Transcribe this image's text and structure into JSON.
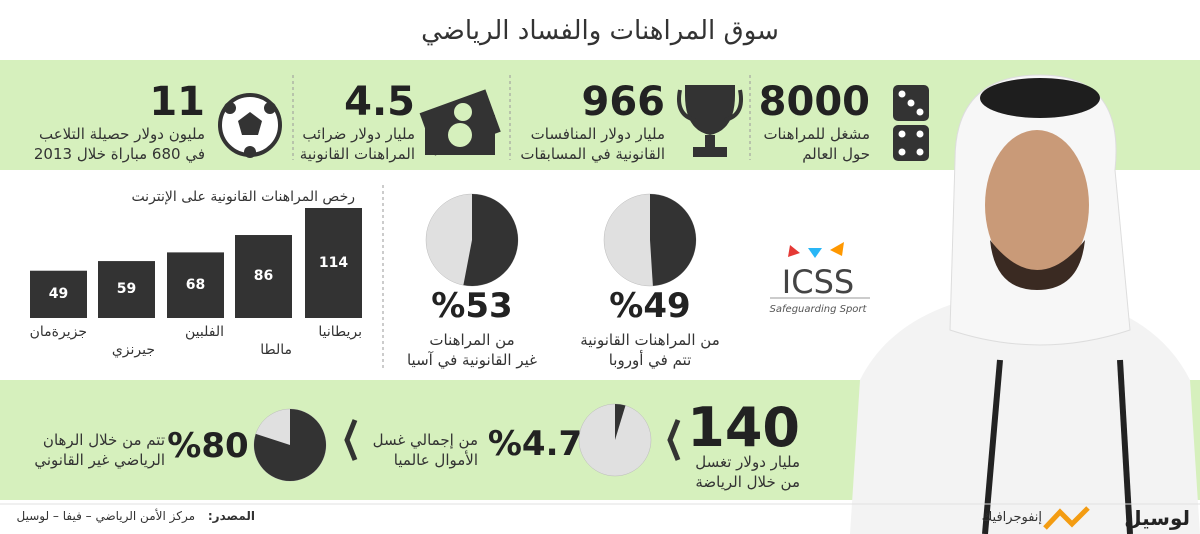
{
  "title": "سوق المراهنات والفساد الرياضي",
  "stats": [
    {
      "value": 8000,
      "lines": [
        "مشغل للمراهنات",
        "حول العالم"
      ]
    },
    {
      "value": 966,
      "lines": [
        "مليار دولار المنافسات",
        "القانونية في المسابقات"
      ]
    },
    {
      "value": 4.5,
      "lines": [
        "مليار دولار ضرائب",
        "المراهنات القانونية"
      ]
    },
    {
      "value": 11,
      "lines": [
        "مليون دولار حصيلة التلاعب",
        "في 680 مباراة خلال 2013"
      ]
    }
  ],
  "chart_data": {
    "type": "bar",
    "title": "رخص المراهنات القانونية على الإنترنت",
    "categories": [
      "بريطانيا",
      "مالطا",
      "الفلبين",
      "جيرنزي",
      "جزيرةمان"
    ],
    "values": [
      114,
      86,
      68,
      59,
      49
    ],
    "color": "#333333"
  },
  "pies": {
    "values": [
      49,
      53,
      4.7,
      80
    ],
    "value_labels": [
      "%49",
      "%53",
      "%4.7",
      "%80"
    ],
    "captions": [
      [
        "من المراهنات القانونية",
        "تتم في أوروبا"
      ],
      [
        "من المراهنات",
        "غير القانونية في آسيا"
      ],
      [
        "من إجمالي غسل",
        "الأموال عالميا"
      ],
      [
        "تتم من خلال الرهان",
        "الرياضي غير القانوني"
      ]
    ],
    "color": "#333333",
    "rest_color": "#e0e0e0"
  },
  "laundering": {
    "value": 140,
    "lines": [
      "مليار دولار تغسل",
      "من خلال الرياضة"
    ]
  },
  "logo": {
    "name": "ICSS",
    "tagline": "Safeguarding Sport"
  },
  "footer": {
    "source_label": "المصدر:",
    "source": "مركز الأمن الرياضي – فيفا – لوسيل",
    "brand": "لوسيل",
    "section": "إنفوجرافيك"
  }
}
